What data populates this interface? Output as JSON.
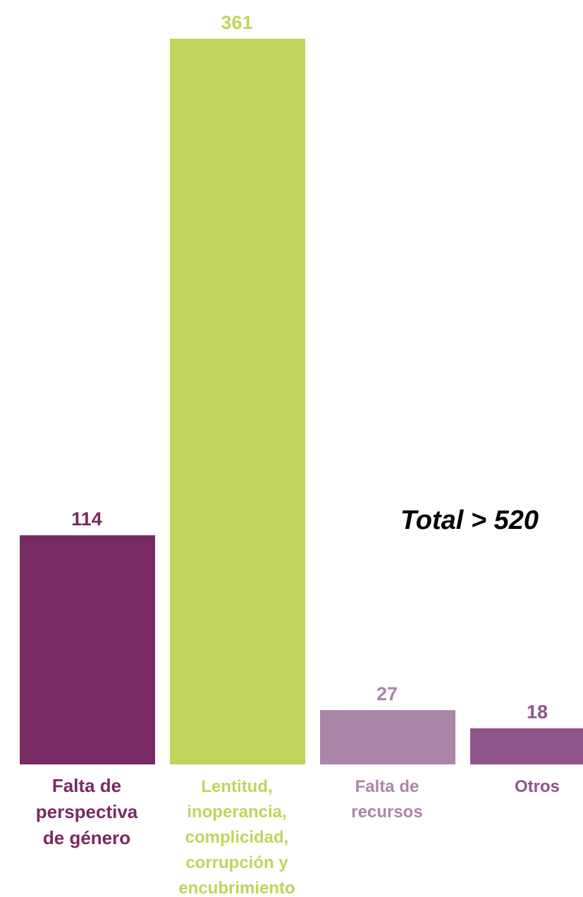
{
  "chart_data": {
    "type": "bar",
    "title": "",
    "xlabel": "",
    "ylabel": "",
    "ylim": [
      0,
      361
    ],
    "grid": false,
    "legend": "none",
    "categories": [
      [
        "Falta de",
        "perspectiva",
        "de género"
      ],
      [
        "Lentitud,",
        "inoperancia,",
        "complicidad,",
        "corrupción y",
        "encubrimiento"
      ],
      [
        "Falta de",
        "recursos"
      ],
      [
        "Otros"
      ]
    ],
    "values": [
      114,
      361,
      27,
      18
    ],
    "colors": [
      "#782a64",
      "#c1d45b",
      "#ab86a8",
      "#90558a"
    ],
    "annotation": "Total > 520"
  }
}
